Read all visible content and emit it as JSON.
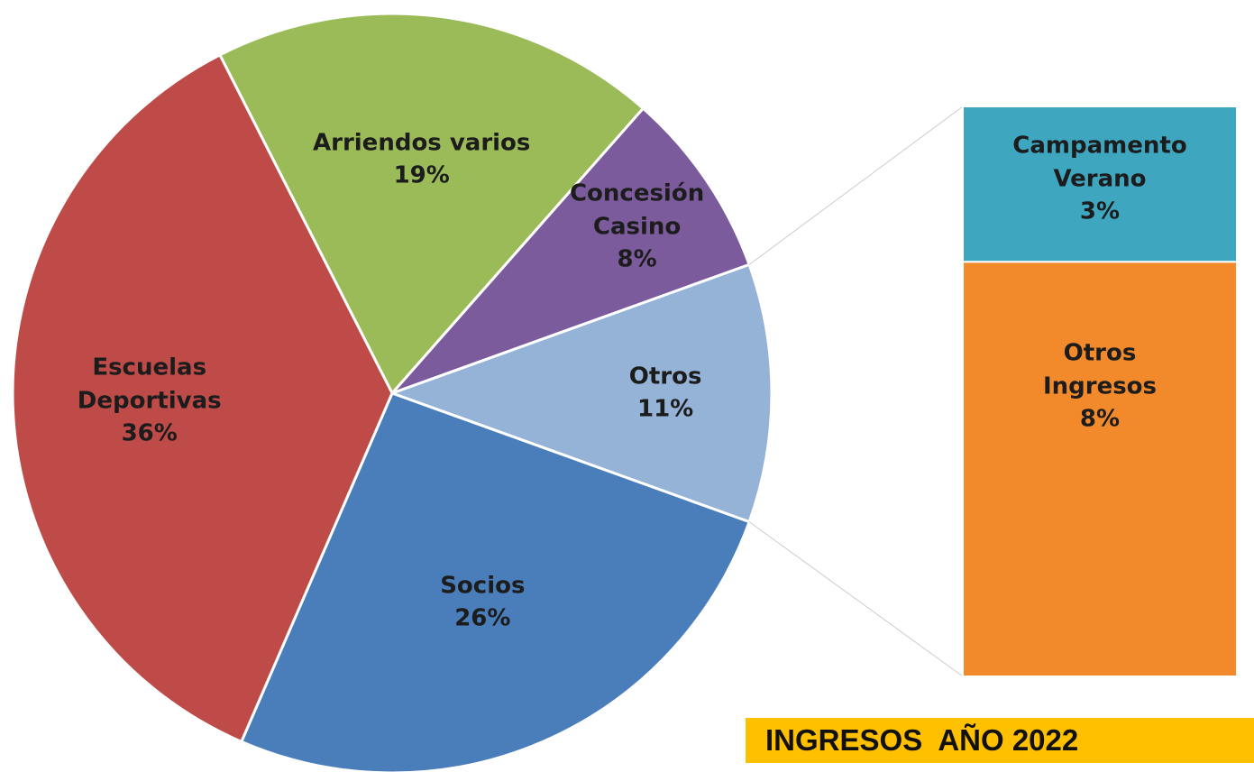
{
  "chart_data": {
    "type": "pie",
    "title": "INGRESOS  AÑO 2022",
    "categories": [
      "Arriendos varios",
      "Concesión\nCasino",
      "Otros",
      "Socios",
      "Escuelas\nDeportivas"
    ],
    "values": [
      19,
      8,
      11,
      26,
      36
    ],
    "value_labels": [
      "19%",
      "8%",
      "11%",
      "26%",
      "36%"
    ],
    "colors": [
      "#9bbb59",
      "#7b5b9c",
      "#95b3d7",
      "#4a7ebb",
      "#be4b48"
    ],
    "bar": {
      "categories": [
        "Campamento\nVerano",
        "Otros  Ingresos"
      ],
      "values": [
        3,
        8
      ],
      "value_labels": [
        "3%",
        "8%"
      ],
      "colors": [
        "#3ea6bf",
        "#f28a2c"
      ]
    }
  }
}
